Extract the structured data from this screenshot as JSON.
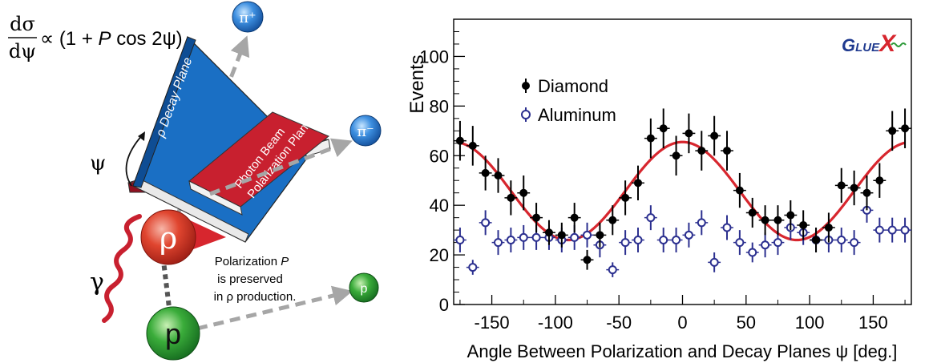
{
  "diagram": {
    "formula": {
      "numerator": "dσ",
      "denominator": "dψ",
      "rhs": "∝ (1 + ",
      "rhs_p": "P",
      "rhs_tail": " cos 2ψ)"
    },
    "labels": {
      "pi_plus": "π⁺",
      "pi_minus": "π⁻",
      "proton_small": "p",
      "proton_big": "p",
      "rho": "ρ",
      "gamma": "γ",
      "psi": "ψ",
      "decay_plane": "ρ Decay Plane",
      "photon_plane_line1": "Photon Beam",
      "photon_plane_line2": "Polarization Plane",
      "note_line1_a": "Polarization ",
      "note_line1_b": "P",
      "note_line2": "is preserved",
      "note_line3": "in ρ production."
    },
    "colors": {
      "decay_plane": "#1a6fc4",
      "photon_plane": "#c8202f",
      "arrow": "#a6a6a6",
      "rho": "#d63a2a",
      "proton": "#2e9b3a",
      "pion": "#2a7fd0"
    }
  },
  "chart_data": {
    "type": "scatter",
    "xlabel": "Angle Between Polarization and Decay Planes ψ [deg.]",
    "ylabel": "Events",
    "xlim": [
      -180,
      180
    ],
    "ylim": [
      0,
      115
    ],
    "xticks": [
      -150,
      -100,
      -50,
      0,
      50,
      100,
      150
    ],
    "xtick_labels": [
      "-150",
      "-100",
      "-50",
      "0",
      "50",
      "100",
      "150"
    ],
    "yticks": [
      0,
      20,
      40,
      60,
      80,
      100
    ],
    "ytick_labels": [
      "0",
      "20",
      "40",
      "60",
      "80",
      "100"
    ],
    "logo": {
      "text_a": "G",
      "text_b": "LUE",
      "text_c": "X"
    },
    "legend": {
      "placement": "top-left"
    },
    "series": [
      {
        "name": "Diamond",
        "marker": "filled-circle",
        "color": "#000000",
        "x": [
          -175,
          -165,
          -155,
          -145,
          -135,
          -125,
          -115,
          -105,
          -95,
          -85,
          -75,
          -65,
          -55,
          -45,
          -35,
          -25,
          -15,
          -5,
          5,
          15,
          25,
          35,
          45,
          55,
          65,
          75,
          85,
          95,
          105,
          115,
          125,
          135,
          145,
          155,
          165,
          175
        ],
        "y": [
          66,
          64,
          53,
          52,
          43,
          45,
          35,
          29,
          28,
          35,
          18,
          28,
          34,
          43,
          49,
          67,
          71,
          60,
          69,
          62,
          68,
          62,
          46,
          37,
          34,
          34,
          36,
          32,
          26,
          31,
          48,
          47,
          45,
          50,
          70,
          71
        ],
        "err": [
          8,
          8,
          7,
          7,
          7,
          7,
          6,
          5,
          5,
          6,
          4,
          5,
          6,
          7,
          7,
          8,
          8,
          8,
          8,
          8,
          8,
          8,
          7,
          6,
          6,
          6,
          6,
          6,
          5,
          6,
          7,
          7,
          7,
          7,
          8,
          8
        ]
      },
      {
        "name": "Aluminum",
        "marker": "open-circle",
        "color": "#2b2f8f",
        "x": [
          -175,
          -165,
          -155,
          -145,
          -135,
          -125,
          -115,
          -105,
          -95,
          -85,
          -75,
          -65,
          -55,
          -45,
          -35,
          -25,
          -15,
          -5,
          5,
          15,
          25,
          35,
          45,
          55,
          65,
          75,
          85,
          95,
          105,
          115,
          125,
          135,
          145,
          155,
          165,
          175
        ],
        "y": [
          26,
          15,
          33,
          25,
          26,
          27,
          27,
          27,
          26,
          27,
          28,
          24,
          14,
          25,
          26,
          35,
          26,
          26,
          28,
          33,
          17,
          31,
          25,
          21,
          24,
          25,
          31,
          29,
          26,
          26,
          26,
          25,
          38,
          30,
          30,
          30
        ],
        "err": [
          5,
          3,
          5,
          5,
          5,
          5,
          5,
          5,
          5,
          5,
          5,
          5,
          3,
          5,
          5,
          5,
          5,
          5,
          5,
          5,
          4,
          5,
          5,
          4,
          5,
          5,
          5,
          5,
          5,
          5,
          5,
          5,
          5,
          5,
          5,
          5
        ]
      },
      {
        "name": "",
        "type": "line",
        "color": "#d7262e",
        "function": "45.75 + 19.75*cos(2*psi)"
      }
    ]
  }
}
